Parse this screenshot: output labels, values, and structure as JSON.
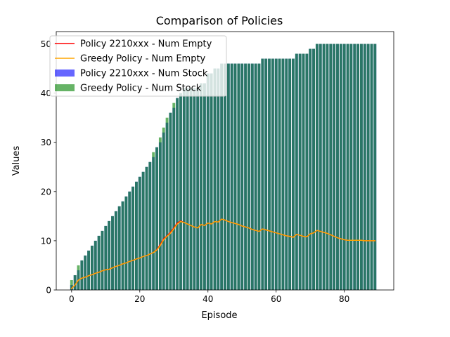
{
  "chart_data": {
    "type": "bar",
    "title": "Comparison of Policies",
    "xlabel": "Episode",
    "ylabel": "Values",
    "xlim": [
      -4.5,
      94.5
    ],
    "ylim": [
      0,
      52.5
    ],
    "xticks": [
      0,
      20,
      40,
      60,
      80
    ],
    "yticks": [
      0,
      10,
      20,
      30,
      40,
      50
    ],
    "grid": false,
    "legend_position": "upper-left",
    "episodes_start": 0,
    "episodes_end": 89,
    "bar_series": [
      {
        "name": "Policy 2210xxx - Num Stock",
        "color": "#0000ff",
        "opacity": 0.6,
        "values": [
          1,
          3,
          4,
          6,
          7,
          8,
          9,
          10,
          11,
          12,
          13,
          14,
          15,
          16,
          17,
          18,
          19,
          20,
          21,
          22,
          23,
          24,
          25,
          26,
          27,
          29,
          30,
          32,
          34,
          36,
          37,
          39,
          40,
          41,
          41,
          41,
          41,
          41,
          42,
          42,
          44,
          44,
          45,
          45,
          46,
          46,
          46,
          46,
          46,
          46,
          46,
          46,
          46,
          46,
          46,
          46,
          47,
          47,
          47,
          47,
          47,
          47,
          47,
          47,
          47,
          47,
          48,
          48,
          48,
          48,
          49,
          49,
          50,
          50,
          50,
          50,
          50,
          50,
          50,
          50,
          50,
          50,
          50,
          50,
          50,
          50,
          50,
          50,
          50,
          50
        ]
      },
      {
        "name": "Greedy Policy - Num Stock",
        "color": "#008000",
        "opacity": 0.6,
        "values": [
          2,
          3,
          5,
          6,
          7,
          8,
          9,
          10,
          11,
          12,
          13,
          14,
          15,
          16,
          17,
          18,
          19,
          20,
          21,
          22,
          23,
          24,
          25,
          26,
          28,
          29,
          31,
          33,
          35,
          36,
          38,
          39,
          40,
          41,
          41,
          41,
          41,
          41,
          42,
          42,
          44,
          44,
          45,
          45,
          46,
          46,
          46,
          46,
          46,
          46,
          46,
          46,
          46,
          46,
          46,
          46,
          47,
          47,
          47,
          47,
          47,
          47,
          47,
          47,
          47,
          47,
          48,
          48,
          48,
          48,
          49,
          49,
          50,
          50,
          50,
          50,
          50,
          50,
          50,
          50,
          50,
          50,
          50,
          50,
          50,
          50,
          50,
          50,
          50,
          50
        ]
      }
    ],
    "line_series": [
      {
        "name": "Policy 2210xxx - Num Empty",
        "color": "#ff0000",
        "values": [
          0.3,
          1.0,
          2.0,
          2.4,
          2.6,
          2.9,
          3.1,
          3.4,
          3.6,
          3.9,
          4.1,
          4.2,
          4.5,
          4.8,
          5.0,
          5.3,
          5.5,
          5.8,
          6.0,
          6.3,
          6.5,
          6.8,
          7.0,
          7.3,
          7.6,
          8.2,
          9.2,
          10.4,
          11.0,
          11.7,
          12.6,
          13.6,
          14.0,
          13.7,
          13.4,
          13.1,
          12.8,
          12.6,
          13.3,
          13.1,
          13.6,
          13.4,
          13.9,
          13.8,
          14.4,
          14.2,
          13.9,
          13.7,
          13.5,
          13.3,
          13.0,
          12.8,
          12.6,
          12.3,
          12.1,
          11.9,
          12.4,
          12.2,
          12.0,
          11.8,
          11.6,
          11.4,
          11.2,
          11.0,
          10.9,
          10.7,
          11.3,
          11.1,
          10.9,
          10.8,
          11.4,
          11.6,
          12.1,
          11.9,
          11.7,
          11.5,
          11.2,
          10.9,
          10.6,
          10.4,
          10.2,
          10.1,
          10.1,
          10.1,
          10.1,
          10.1,
          10.0,
          10.0,
          10.0,
          10.0
        ]
      },
      {
        "name": "Greedy Policy - Num Empty",
        "color": "#ffa500",
        "values": [
          0.3,
          1.0,
          2.0,
          2.4,
          2.6,
          2.9,
          3.1,
          3.4,
          3.6,
          3.9,
          4.1,
          4.2,
          4.5,
          4.8,
          5.0,
          5.3,
          5.5,
          5.8,
          6.0,
          6.3,
          6.5,
          6.8,
          7.0,
          7.3,
          7.6,
          8.1,
          9.0,
          10.2,
          10.9,
          11.5,
          12.4,
          13.4,
          13.9,
          13.7,
          13.4,
          13.1,
          12.8,
          12.6,
          13.3,
          13.1,
          13.6,
          13.4,
          13.9,
          13.8,
          14.4,
          14.2,
          13.9,
          13.7,
          13.5,
          13.3,
          13.0,
          12.8,
          12.6,
          12.3,
          12.1,
          11.9,
          12.4,
          12.2,
          12.0,
          11.8,
          11.6,
          11.4,
          11.2,
          11.0,
          10.9,
          10.7,
          11.3,
          11.1,
          10.9,
          10.8,
          11.4,
          11.6,
          12.1,
          11.9,
          11.7,
          11.5,
          11.2,
          10.9,
          10.6,
          10.4,
          10.2,
          10.1,
          10.1,
          10.1,
          10.1,
          10.1,
          10.0,
          10.0,
          10.0,
          10.0
        ]
      }
    ],
    "legend": [
      {
        "label": "Policy 2210xxx - Num Empty",
        "kind": "line",
        "color": "#ff0000"
      },
      {
        "label": "Greedy Policy - Num Empty",
        "kind": "line",
        "color": "#ffa500"
      },
      {
        "label": "Policy 2210xxx - Num Stock",
        "kind": "patch",
        "color": "#0000ff",
        "opacity": 0.6
      },
      {
        "label": "Greedy Policy - Num Stock",
        "kind": "patch",
        "color": "#008000",
        "opacity": 0.6
      }
    ]
  }
}
